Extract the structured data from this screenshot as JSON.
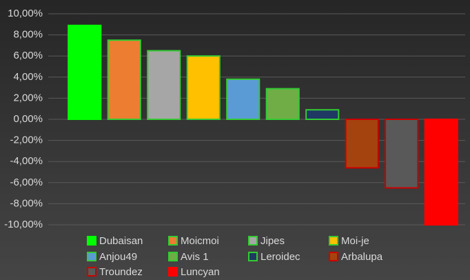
{
  "chart_data": {
    "type": "bar",
    "categories": [
      "Dubaisan",
      "Moicmoi",
      "Jipes",
      "Moi-je",
      "Anjou49",
      "Avis 1",
      "Leroidec",
      "Arbalupa",
      "Troundez",
      "Luncyan"
    ],
    "values": [
      8.9,
      7.5,
      6.5,
      6.0,
      3.8,
      2.9,
      0.9,
      -4.6,
      -6.5,
      -10.0
    ],
    "colors": [
      "#00ff00",
      "#ed7d31",
      "#a6a6a6",
      "#ffc000",
      "#5b9bd5",
      "#70ad47",
      "#1f3864",
      "#a5430f",
      "#595959",
      "#ff0000"
    ],
    "border_colors": [
      "#00ff00",
      "#33cc33",
      "#33cc33",
      "#33cc33",
      "#33cc33",
      "#33cc33",
      "#33cc33",
      "#cc0000",
      "#cc0000",
      "#ff0000"
    ],
    "ylim": [
      -10,
      10
    ],
    "yticks": [
      {
        "value": -10,
        "label": "-10,00%"
      },
      {
        "value": -8,
        "label": "-8,00%"
      },
      {
        "value": -6,
        "label": "-6,00%"
      },
      {
        "value": -4,
        "label": "-4,00%"
      },
      {
        "value": -2,
        "label": "-2,00%"
      },
      {
        "value": 0,
        "label": "0,00%"
      },
      {
        "value": 2,
        "label": "2,00%"
      },
      {
        "value": 4,
        "label": "4,00%"
      },
      {
        "value": 6,
        "label": "6,00%"
      },
      {
        "value": 8,
        "label": "8,00%"
      },
      {
        "value": 10,
        "label": "10,00%"
      }
    ],
    "grid": true
  }
}
